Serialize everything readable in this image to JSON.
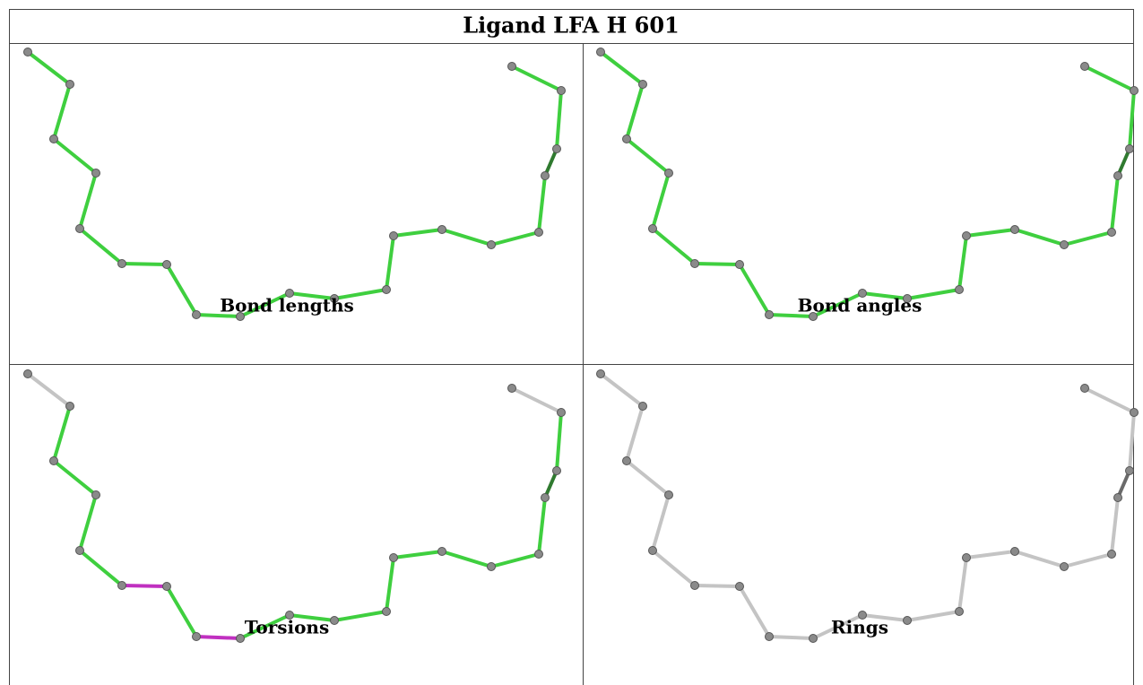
{
  "title": "Ligand LFA H 601",
  "panels": [
    {
      "caption": "Bond lengths"
    },
    {
      "caption": "Bond angles"
    },
    {
      "caption": "Torsions"
    },
    {
      "caption": "Rings"
    }
  ]
}
